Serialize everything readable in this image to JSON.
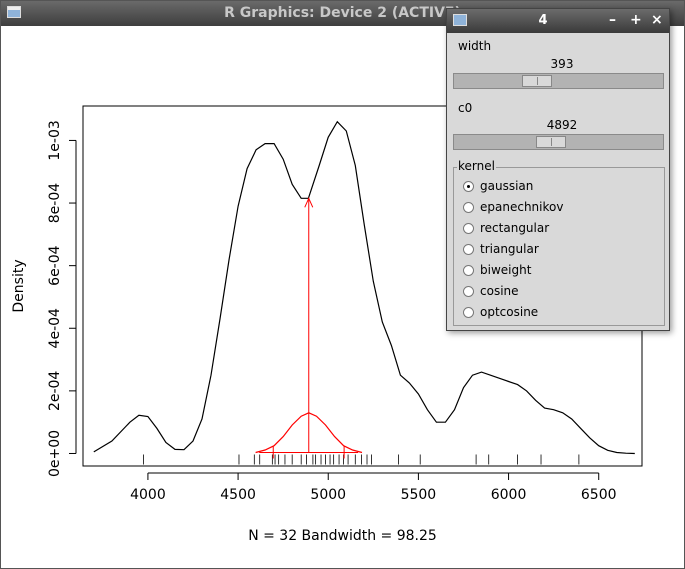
{
  "main_window": {
    "title": "R Graphics: Device 2 (ACTIVE)"
  },
  "chart_data": {
    "type": "line",
    "title": "",
    "xlabel": "N = 32   Bandwidth = 98.25",
    "ylabel": "Density",
    "xlim": [
      3640,
      6740
    ],
    "ylim": [
      -4e-05,
      0.00111
    ],
    "x_ticks": [
      4000,
      4500,
      5000,
      5500,
      6000,
      6500
    ],
    "y_ticks": [
      0,
      0.0002,
      0.0004,
      0.0006,
      0.0008,
      0.001
    ],
    "y_tick_labels": [
      "0e+00",
      "2e-04",
      "4e-04",
      "6e-04",
      "8e-04",
      "1e-03"
    ],
    "series": [
      {
        "color": "#000000",
        "x": [
          3700,
          3800,
          3900,
          3950,
          4000,
          4050,
          4100,
          4150,
          4200,
          4250,
          4300,
          4350,
          4400,
          4450,
          4500,
          4550,
          4600,
          4650,
          4700,
          4750,
          4800,
          4850,
          4890,
          4950,
          5000,
          5050,
          5100,
          5150,
          5200,
          5250,
          5300,
          5350,
          5400,
          5450,
          5500,
          5550,
          5600,
          5650,
          5700,
          5750,
          5800,
          5850,
          5900,
          5950,
          6000,
          6050,
          6100,
          6150,
          6200,
          6250,
          6300,
          6350,
          6400,
          6450,
          6500,
          6550,
          6600,
          6650,
          6700
        ],
        "y": [
          5e-06,
          4e-05,
          0.0001,
          0.000122,
          0.000118,
          8e-05,
          3.5e-05,
          1.3e-05,
          1.2e-05,
          4e-05,
          0.00011,
          0.00025,
          0.00043,
          0.00062,
          0.00079,
          0.00091,
          0.00097,
          0.00099,
          0.00099,
          0.00094,
          0.00086,
          0.000815,
          0.000815,
          0.00092,
          0.00101,
          0.00106,
          0.00103,
          0.00092,
          0.00073,
          0.00055,
          0.00042,
          0.000345,
          0.00025,
          0.000225,
          0.00019,
          0.00014,
          0.0001,
          0.0001,
          0.00014,
          0.00021,
          0.00025,
          0.00026,
          0.00025,
          0.00024,
          0.00023,
          0.00022,
          0.0002,
          0.00017,
          0.000145,
          0.00014,
          0.00013,
          0.00011,
          8e-05,
          5e-05,
          2.5e-05,
          1e-05,
          3e-06,
          1e-06,
          0
        ]
      },
      {
        "name": "",
        "color": "#ff0000",
        "x": [
          4597,
          4650,
          4700,
          4750,
          4800,
          4850,
          4892,
          4935,
          4985,
          5035,
          5085,
          5135,
          5187
        ],
        "y": [
          3e-06,
          1.1e-05,
          2.5e-05,
          5.4e-05,
          9.1e-05,
          0.000119,
          0.00013,
          0.000119,
          9.1e-05,
          5.4e-05,
          2.5e-05,
          1.1e-05,
          3e-06
        ]
      }
    ],
    "rug": [
      3975,
      4505,
      4590,
      4620,
      4690,
      4705,
      4725,
      4760,
      4800,
      4850,
      4880,
      4915,
      4930,
      4960,
      4985,
      5010,
      5030,
      5060,
      5085,
      5110,
      5150,
      5185,
      5215,
      5240,
      5390,
      5510,
      5820,
      5890,
      6050,
      6180,
      6390
    ],
    "annotations": {
      "c0": 4892,
      "window_left": 4695,
      "window_right": 5088,
      "arrow_tip_y": 0.000815,
      "color": "#ff0000"
    }
  },
  "control_window": {
    "title": "4",
    "buttons": [
      "–",
      "+",
      "×"
    ],
    "width_label": "width",
    "width_value": "393",
    "width_fraction": 0.38,
    "c0_label": "c0",
    "c0_value": "4892",
    "c0_fraction": 0.46,
    "kernel_label": "kernel",
    "kernels": [
      {
        "label": "gaussian",
        "selected": true
      },
      {
        "label": "epanechnikov",
        "selected": false
      },
      {
        "label": "rectangular",
        "selected": false
      },
      {
        "label": "triangular",
        "selected": false
      },
      {
        "label": "biweight",
        "selected": false
      },
      {
        "label": "cosine",
        "selected": false
      },
      {
        "label": "optcosine",
        "selected": false
      }
    ]
  }
}
